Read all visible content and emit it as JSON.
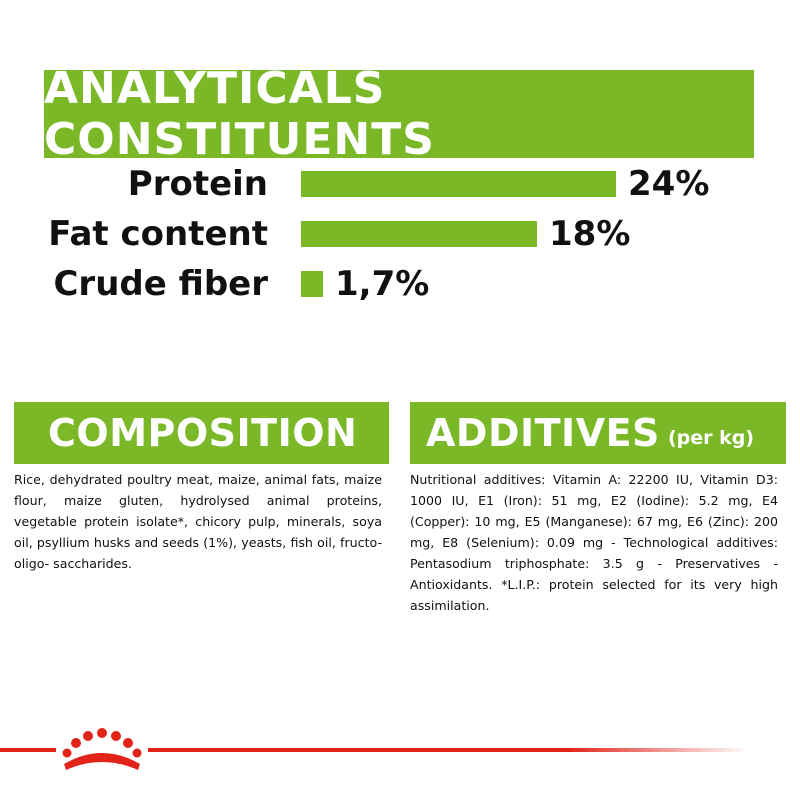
{
  "analyticals": {
    "title": "ANALYTICALS CONSTITUENTS",
    "items": [
      {
        "label": "Protein",
        "value_text": "24%",
        "value": 24
      },
      {
        "label": "Fat content",
        "value_text": "18%",
        "value": 18
      },
      {
        "label": "Crude fiber",
        "value_text": "1,7%",
        "value": 1.7
      }
    ]
  },
  "composition": {
    "title": "COMPOSITION",
    "text": "Rice, dehydrated poultry meat, maize, animal fats, maize flour, maize gluten, hydrolysed animal proteins, vegetable protein isolate*, chicory pulp, minerals, soya oil, psyllium husks and seeds (1%), yeasts, fish oil, fructo-oligo- saccharides."
  },
  "additives": {
    "title": "ADDITIVES",
    "suffix": "(per kg)",
    "text": "Nutritional additives: Vitamin A: 22200 IU, Vitamin D3: 1000 IU, E1 (Iron): 51 mg, E2 (Iodine): 5.2 mg, E4 (Copper): 10 mg, E5 (Manganese): 67 mg, E6 (Zinc): 200 mg, E8 (Selenium): 0.09 mg - Technological additives: Pentasodium triphosphate: 3.5 g - Preservatives - Antioxidants. *L.I.P.: protein selected for its very high assimilation."
  },
  "colors": {
    "accent": "#7ab827",
    "brand_red": "#e2231a"
  },
  "logo": {
    "icon": "royal-canin-crown-icon"
  }
}
